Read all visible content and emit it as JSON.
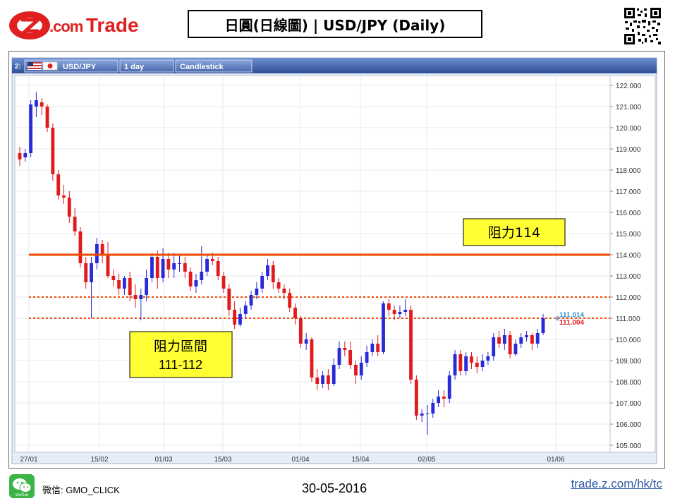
{
  "header": {
    "logo_text": "Z.com Trade",
    "logo_com": ".com",
    "logo_trade": "Trade",
    "title": "日圓(日線圖) | USD/JPY  (Daily)"
  },
  "toolbar": {
    "index": "2:",
    "symbol": "USD/JPY",
    "interval": "1 day",
    "chart_style": "Candlestick"
  },
  "annotations": {
    "resistance_114": "阻力114",
    "resistance_zone_title": "阻力區間",
    "resistance_zone_range": "111-112"
  },
  "price_tags": {
    "ask": "111.014",
    "bid": "111.004"
  },
  "footer": {
    "wechat_label": "微信: GMO_CLICK",
    "wechat_icon_text": "WeChat",
    "date": "30-05-2016",
    "link": "trade.z.com/hk/tc"
  },
  "colors": {
    "up_candle": "#2a2ad8",
    "down_candle": "#e11b1b",
    "resistance_line": "#f04a00",
    "zone_line": "#f04a00",
    "annotation_bg": "#ffff33",
    "toolbar_bg": "#3e5fa8",
    "brand_red": "#e02020",
    "link": "#2c5aa6",
    "ask_tag": "#2c8fd0",
    "bid_tag": "#e11b1b"
  },
  "chart_data": {
    "type": "candlestick",
    "title": "USD/JPY",
    "interval": "1 day",
    "ylim": [
      104.5,
      122.5
    ],
    "yticks": [
      "105.000",
      "106.000",
      "107.000",
      "108.000",
      "109.000",
      "110.000",
      "111.000",
      "112.000",
      "113.000",
      "114.000",
      "115.000",
      "116.000",
      "117.000",
      "118.000",
      "119.000",
      "120.000",
      "121.000",
      "122.000"
    ],
    "xticks": [
      "27/01",
      "15/02",
      "01/03",
      "15/03",
      "01/04",
      "15/04",
      "02/05",
      "01/06"
    ],
    "resistance_line": 114,
    "resistance_zone": [
      111,
      112
    ],
    "last_ask": 111.014,
    "last_bid": 111.004,
    "candles": [
      [
        118.8,
        118.5,
        119.1,
        118.2
      ],
      [
        118.6,
        118.8,
        119.0,
        118.4
      ],
      [
        118.8,
        121.1,
        121.3,
        118.6
      ],
      [
        121.0,
        121.3,
        121.7,
        120.5
      ],
      [
        121.2,
        121.0,
        121.4,
        120.6
      ],
      [
        121.0,
        120.0,
        121.1,
        119.8
      ],
      [
        120.0,
        117.8,
        120.2,
        117.5
      ],
      [
        117.8,
        116.8,
        118.0,
        116.6
      ],
      [
        116.8,
        116.7,
        117.3,
        116.4
      ],
      [
        116.7,
        115.8,
        117.0,
        115.5
      ],
      [
        115.8,
        115.1,
        116.2,
        114.9
      ],
      [
        115.1,
        113.6,
        115.3,
        113.4
      ],
      [
        113.6,
        112.7,
        113.9,
        112.4
      ],
      [
        112.7,
        113.6,
        113.9,
        111.0
      ],
      [
        113.6,
        114.5,
        114.8,
        113.3
      ],
      [
        114.5,
        114.0,
        114.7,
        113.6
      ],
      [
        114.0,
        113.0,
        114.6,
        112.9
      ],
      [
        113.0,
        112.8,
        113.3,
        112.5
      ],
      [
        112.8,
        112.4,
        113.1,
        112.1
      ],
      [
        112.4,
        112.9,
        113.0,
        112.1
      ],
      [
        112.9,
        112.1,
        113.2,
        111.8
      ],
      [
        112.1,
        111.9,
        112.6,
        111.5
      ],
      [
        111.9,
        112.1,
        112.4,
        110.9
      ],
      [
        112.1,
        112.9,
        113.3,
        111.8
      ],
      [
        112.9,
        113.9,
        114.1,
        112.7
      ],
      [
        113.9,
        112.9,
        114.2,
        112.4
      ],
      [
        112.9,
        113.8,
        114.3,
        112.7
      ],
      [
        113.8,
        113.3,
        114.1,
        112.9
      ],
      [
        113.3,
        113.6,
        114.1,
        112.9
      ],
      [
        113.6,
        113.6,
        114.0,
        113.2
      ],
      [
        113.6,
        113.2,
        113.9,
        112.9
      ],
      [
        113.2,
        112.5,
        113.4,
        112.3
      ],
      [
        112.5,
        112.8,
        113.1,
        112.2
      ],
      [
        112.8,
        113.2,
        114.4,
        112.6
      ],
      [
        113.2,
        113.8,
        114.0,
        113.0
      ],
      [
        113.8,
        113.7,
        114.1,
        113.5
      ],
      [
        113.7,
        113.0,
        113.9,
        112.8
      ],
      [
        113.0,
        112.4,
        113.2,
        112.2
      ],
      [
        112.4,
        111.4,
        112.6,
        111.1
      ],
      [
        111.4,
        110.7,
        111.8,
        110.5
      ],
      [
        110.7,
        111.2,
        111.5,
        110.6
      ],
      [
        111.2,
        111.6,
        111.8,
        111.0
      ],
      [
        111.6,
        112.1,
        112.3,
        111.4
      ],
      [
        112.1,
        112.4,
        112.7,
        111.9
      ],
      [
        112.4,
        113.0,
        113.2,
        112.2
      ],
      [
        113.0,
        113.5,
        113.8,
        112.8
      ],
      [
        113.5,
        112.7,
        113.7,
        112.4
      ],
      [
        112.7,
        112.4,
        112.9,
        112.2
      ],
      [
        112.4,
        112.2,
        112.6,
        111.9
      ],
      [
        112.2,
        111.5,
        112.4,
        111.3
      ],
      [
        111.5,
        111.0,
        111.7,
        110.7
      ],
      [
        111.0,
        109.8,
        111.1,
        109.6
      ],
      [
        109.8,
        110.0,
        110.3,
        109.5
      ],
      [
        110.0,
        108.2,
        110.1,
        108.0
      ],
      [
        108.2,
        107.9,
        108.6,
        107.6
      ],
      [
        107.9,
        108.3,
        108.5,
        107.7
      ],
      [
        108.3,
        107.9,
        108.6,
        107.6
      ],
      [
        107.9,
        108.8,
        109.1,
        107.8
      ],
      [
        108.8,
        109.6,
        109.9,
        108.6
      ],
      [
        109.6,
        109.5,
        109.9,
        109.2
      ],
      [
        109.5,
        108.8,
        109.9,
        108.6
      ],
      [
        108.8,
        108.3,
        109.0,
        107.9
      ],
      [
        108.3,
        108.9,
        109.2,
        108.1
      ],
      [
        108.9,
        109.4,
        109.7,
        108.7
      ],
      [
        109.4,
        109.8,
        110.0,
        109.2
      ],
      [
        109.8,
        109.4,
        110.2,
        109.2
      ],
      [
        109.4,
        111.7,
        111.8,
        109.3
      ],
      [
        111.7,
        111.4,
        111.9,
        111.1
      ],
      [
        111.4,
        111.2,
        111.6,
        110.9
      ],
      [
        111.2,
        111.3,
        111.6,
        111.0
      ],
      [
        111.3,
        111.4,
        111.9,
        111.1
      ],
      [
        111.4,
        108.1,
        111.6,
        107.9
      ],
      [
        108.1,
        106.4,
        108.3,
        106.2
      ],
      [
        106.4,
        106.5,
        106.7,
        106.1
      ],
      [
        106.5,
        106.5,
        106.9,
        105.5
      ],
      [
        106.5,
        107.0,
        107.2,
        106.3
      ],
      [
        107.0,
        107.3,
        107.6,
        106.8
      ],
      [
        107.3,
        107.2,
        107.6,
        106.8
      ],
      [
        107.2,
        108.3,
        108.5,
        107.0
      ],
      [
        108.3,
        109.3,
        109.5,
        108.1
      ],
      [
        109.3,
        108.5,
        109.5,
        108.3
      ],
      [
        108.5,
        109.2,
        109.4,
        108.3
      ],
      [
        109.2,
        108.9,
        109.4,
        108.6
      ],
      [
        108.9,
        108.7,
        109.2,
        108.4
      ],
      [
        108.7,
        109.0,
        109.3,
        108.5
      ],
      [
        109.0,
        109.2,
        109.4,
        108.8
      ],
      [
        109.2,
        110.1,
        110.3,
        109.0
      ],
      [
        110.1,
        109.8,
        110.4,
        109.6
      ],
      [
        109.8,
        110.2,
        110.5,
        109.5
      ],
      [
        110.2,
        109.3,
        110.4,
        109.1
      ],
      [
        109.3,
        109.8,
        110.0,
        109.2
      ],
      [
        109.8,
        110.1,
        110.3,
        109.6
      ],
      [
        110.1,
        110.2,
        110.4,
        109.9
      ],
      [
        110.2,
        109.8,
        110.3,
        109.5
      ],
      [
        109.8,
        110.3,
        110.5,
        109.6
      ],
      [
        110.3,
        111.0,
        111.2,
        110.2
      ]
    ]
  }
}
